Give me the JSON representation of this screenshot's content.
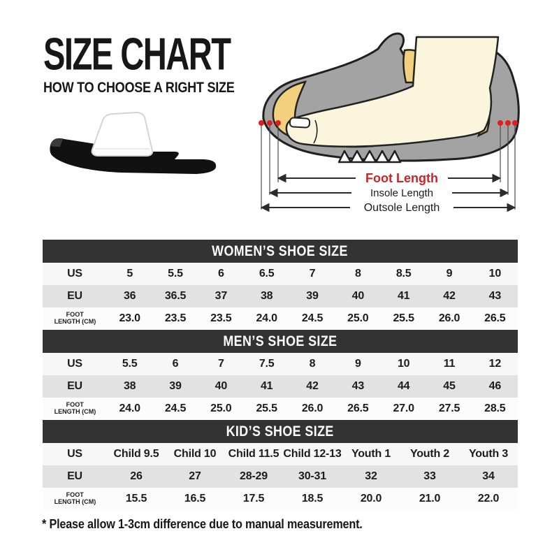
{
  "page": {
    "title": "SIZE CHART",
    "subtitle": "HOW TO CHOOSE A RIGHT SIZE",
    "footnote": "* Please allow 1-3cm difference due to manual measurement."
  },
  "diagram": {
    "labels": {
      "foot_length": "Foot Length",
      "insole_length": "Insole Length",
      "outsole_length": "Outsole Length"
    }
  },
  "colors": {
    "header_bg": "#333333",
    "row_light": "#f7f7f7",
    "row_gray": "#e2e2e2",
    "row_white": "#fcfcfc",
    "foot_label_red": "#cc2229",
    "marker_dot_red": "#e01e1e",
    "shoe_gray": "#a3a3a3",
    "foot_cream": "#faf5dc",
    "insole_yellow": "#f3d07e",
    "line_dark": "#2b2b2b"
  },
  "tables": [
    {
      "title": "WOMEN’S SHOE SIZE",
      "rows": [
        {
          "key": "us",
          "label": "US",
          "values": [
            "5",
            "5.5",
            "6",
            "6.5",
            "7",
            "8",
            "8.5",
            "9",
            "10"
          ]
        },
        {
          "key": "eu",
          "label": "EU",
          "values": [
            "36",
            "36.5",
            "37",
            "38",
            "39",
            "40",
            "41",
            "42",
            "43"
          ]
        },
        {
          "key": "foot",
          "label": "FOOT LENGTH (CM)",
          "label_lines": [
            "FOOT",
            "LENGTH (CM)"
          ],
          "values": [
            "23.0",
            "23.5",
            "23.5",
            "24.0",
            "24.5",
            "25.0",
            "25.5",
            "26.0",
            "26.5"
          ]
        }
      ]
    },
    {
      "title": "MEN’S SHOE SIZE",
      "rows": [
        {
          "key": "us",
          "label": "US",
          "values": [
            "5.5",
            "6",
            "7",
            "7.5",
            "8",
            "9",
            "10",
            "11",
            "12"
          ]
        },
        {
          "key": "eu",
          "label": "EU",
          "values": [
            "38",
            "39",
            "40",
            "41",
            "42",
            "43",
            "44",
            "45",
            "46"
          ]
        },
        {
          "key": "foot",
          "label": "FOOT LENGTH (CM)",
          "label_lines": [
            "FOOT",
            "LENGTH (CM)"
          ],
          "values": [
            "24.0",
            "24.5",
            "25.0",
            "25.5",
            "26.0",
            "26.5",
            "27.0",
            "27.5",
            "28.5"
          ]
        }
      ]
    },
    {
      "title": "KID’S SHOE SIZE",
      "rows": [
        {
          "key": "us",
          "label": "US",
          "values": [
            "Child 9.5",
            "Child 10",
            "Child 11.5",
            "Child 12-13",
            "Youth 1",
            "Youth 2",
            "Youth 3"
          ]
        },
        {
          "key": "eu",
          "label": "EU",
          "values": [
            "26",
            "27",
            "28-29",
            "30-31",
            "32",
            "33",
            "34"
          ]
        },
        {
          "key": "foot",
          "label": "FOOT LENGTH (CM)",
          "label_lines": [
            "FOOT",
            "LENGTH (CM)"
          ],
          "values": [
            "15.5",
            "16.5",
            "17.5",
            "18.5",
            "20.0",
            "21.0",
            "22.0"
          ]
        }
      ]
    }
  ]
}
